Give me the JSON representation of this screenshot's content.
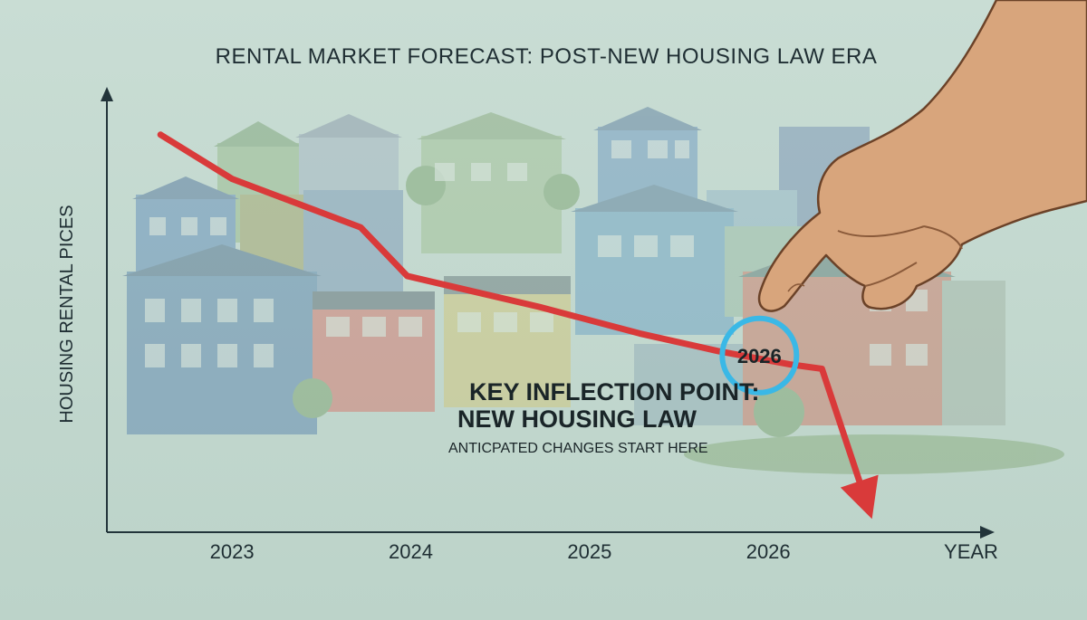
{
  "chart_data": {
    "type": "line",
    "title": "RENTAL MARKET FORECAST: POST-NEW HOUSING LAW ERA",
    "xlabel": "YEAR",
    "ylabel": "HOUSING RENTAL PICES",
    "categories": [
      "2023",
      "2024",
      "2025",
      "2026"
    ],
    "x": [
      2022.6,
      2023.0,
      2023.72,
      2023.98,
      2024.72,
      2025.28,
      2025.72,
      2026.12,
      2026.3,
      2026.58
    ],
    "values": [
      90,
      80,
      69,
      58,
      51,
      45,
      41,
      38,
      37,
      3
    ],
    "xlim": [
      2022.3,
      2027.2
    ],
    "ylim": [
      0,
      100
    ],
    "grid": false,
    "line_color": "#d93a3a",
    "highlight": {
      "x": 2025.95,
      "y": 40,
      "label": "2026",
      "color": "#3ab8e6"
    },
    "annotations": [
      {
        "text": "KEY INFLECTION POINT:",
        "style": "headline"
      },
      {
        "text": "NEW HOUSING LAW",
        "style": "headline"
      },
      {
        "text": "ANTICPATED CHANGES START HERE",
        "style": "sub"
      }
    ]
  }
}
